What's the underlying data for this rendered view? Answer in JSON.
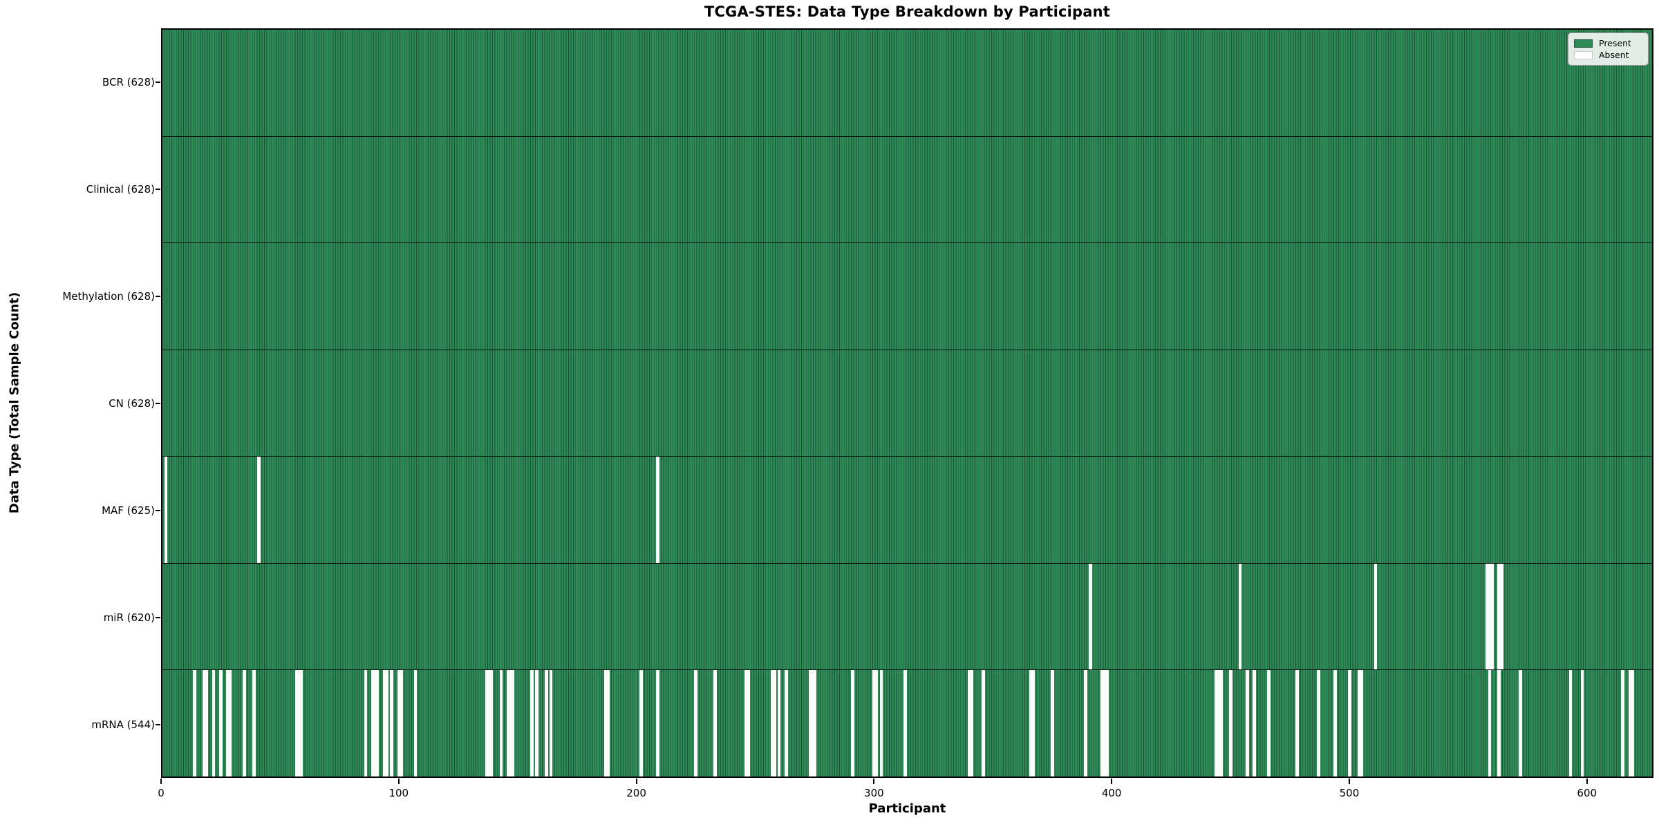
{
  "chart_data": {
    "type": "heatmap",
    "title": "TCGA-STES: Data Type Breakdown by Participant",
    "xlabel": "Participant",
    "ylabel": "Data Type (Total Sample Count)",
    "x_ticks": [
      0,
      100,
      200,
      300,
      400,
      500,
      600
    ],
    "x_range": [
      0,
      628
    ],
    "participants_total": 628,
    "grid": false,
    "colors": {
      "present": "#2e8b57",
      "bar_edge": "#1d5136",
      "absent": "#ffffff"
    },
    "legend": {
      "position": "upper-right",
      "entries": [
        {
          "label": "Present",
          "color": "#2e8b57"
        },
        {
          "label": "Absent",
          "color": "#ffffff"
        }
      ]
    },
    "rows": [
      {
        "data_type": "BCR",
        "label": "BCR (628)",
        "present_count": 628,
        "absent_participants": []
      },
      {
        "data_type": "Clinical",
        "label": "Clinical (628)",
        "present_count": 628,
        "absent_participants": []
      },
      {
        "data_type": "Methylation",
        "label": "Methylation (628)",
        "present_count": 628,
        "absent_participants": []
      },
      {
        "data_type": "CN",
        "label": "CN (628)",
        "present_count": 628,
        "absent_participants": []
      },
      {
        "data_type": "MAF",
        "label": "MAF (625)",
        "present_count": 625,
        "absent_participants": [
          1,
          40,
          208
        ]
      },
      {
        "data_type": "miR",
        "label": "miR (620)",
        "present_count": 620,
        "absent_participants": [
          390,
          453,
          510,
          557,
          558,
          559,
          562,
          563
        ]
      },
      {
        "data_type": "mRNA",
        "label": "mRNA (544)",
        "present_count": 544,
        "absent_participants": [
          13,
          17,
          18,
          21,
          24,
          27,
          28,
          34,
          38,
          56,
          57,
          58,
          85,
          88,
          89,
          90,
          93,
          94,
          96,
          99,
          100,
          106,
          136,
          137,
          138,
          142,
          145,
          146,
          147,
          155,
          157,
          161,
          163,
          186,
          187,
          201,
          208,
          224,
          232,
          245,
          246,
          256,
          257,
          259,
          262,
          272,
          273,
          274,
          290,
          299,
          300,
          302,
          312,
          339,
          340,
          345,
          365,
          366,
          374,
          388,
          395,
          396,
          397,
          443,
          444,
          445,
          449,
          456,
          459,
          465,
          477,
          486,
          493,
          499,
          503,
          504,
          558,
          562,
          571,
          592,
          597,
          614,
          617,
          618
        ]
      }
    ]
  }
}
